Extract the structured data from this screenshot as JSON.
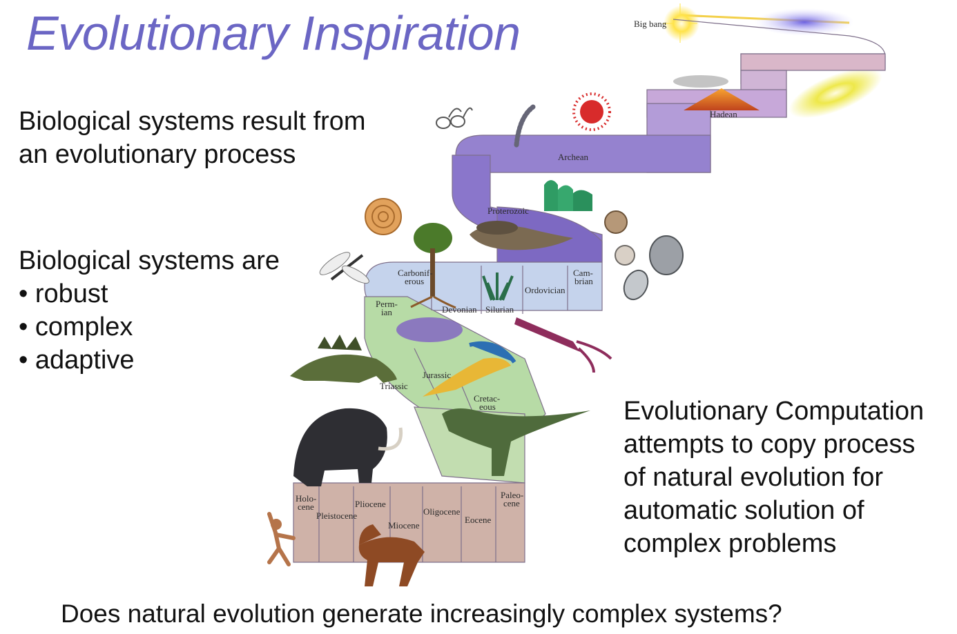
{
  "title": "Evolutionary Inspiration",
  "block1": {
    "lines": [
      "Biological systems result from",
      "an evolutionary process"
    ]
  },
  "block2": {
    "lines": [
      "Biological systems are",
      "• robust",
      "• complex",
      "• adaptive"
    ]
  },
  "block3": {
    "lines": [
      "Evolutionary Computation",
      "attempts to copy process",
      "of natural evolution for",
      "automatic solution of",
      "complex problems"
    ]
  },
  "question": "Does natural evolution generate increasingly complex systems?",
  "timeline": {
    "big_bang": "Big bang",
    "hadean": "Hadean",
    "archean": "Archean",
    "proterozoic": "Proterozoic",
    "cambrian": [
      "Cam-",
      "brian"
    ],
    "ordovician": "Ordovician",
    "silurian": "Silurian",
    "devonian": "Devonian",
    "carboniferous": [
      "Carbonif-",
      "erous"
    ],
    "permian": [
      "Perm-",
      "ian"
    ],
    "triassic": "Triassic",
    "jurassic": "Jurassic",
    "cretaceous": [
      "Cretac-",
      "eous"
    ],
    "paleocene": [
      "Paleo-",
      "cene"
    ],
    "eocene": "Eocene",
    "oligocene": "Oligocene",
    "miocene": "Miocene",
    "pliocene": "Pliocene",
    "pleistocene": "Pleistocene",
    "holocene": [
      "Holo-",
      "cene"
    ]
  },
  "colors": {
    "title": "#6b66c4",
    "band_top": "#d8b6a8",
    "band_purple": "#8e79c6",
    "band_blue": "#b9c9e6",
    "band_green": "#a9d39a",
    "band_brown": "#c9aaa0"
  }
}
